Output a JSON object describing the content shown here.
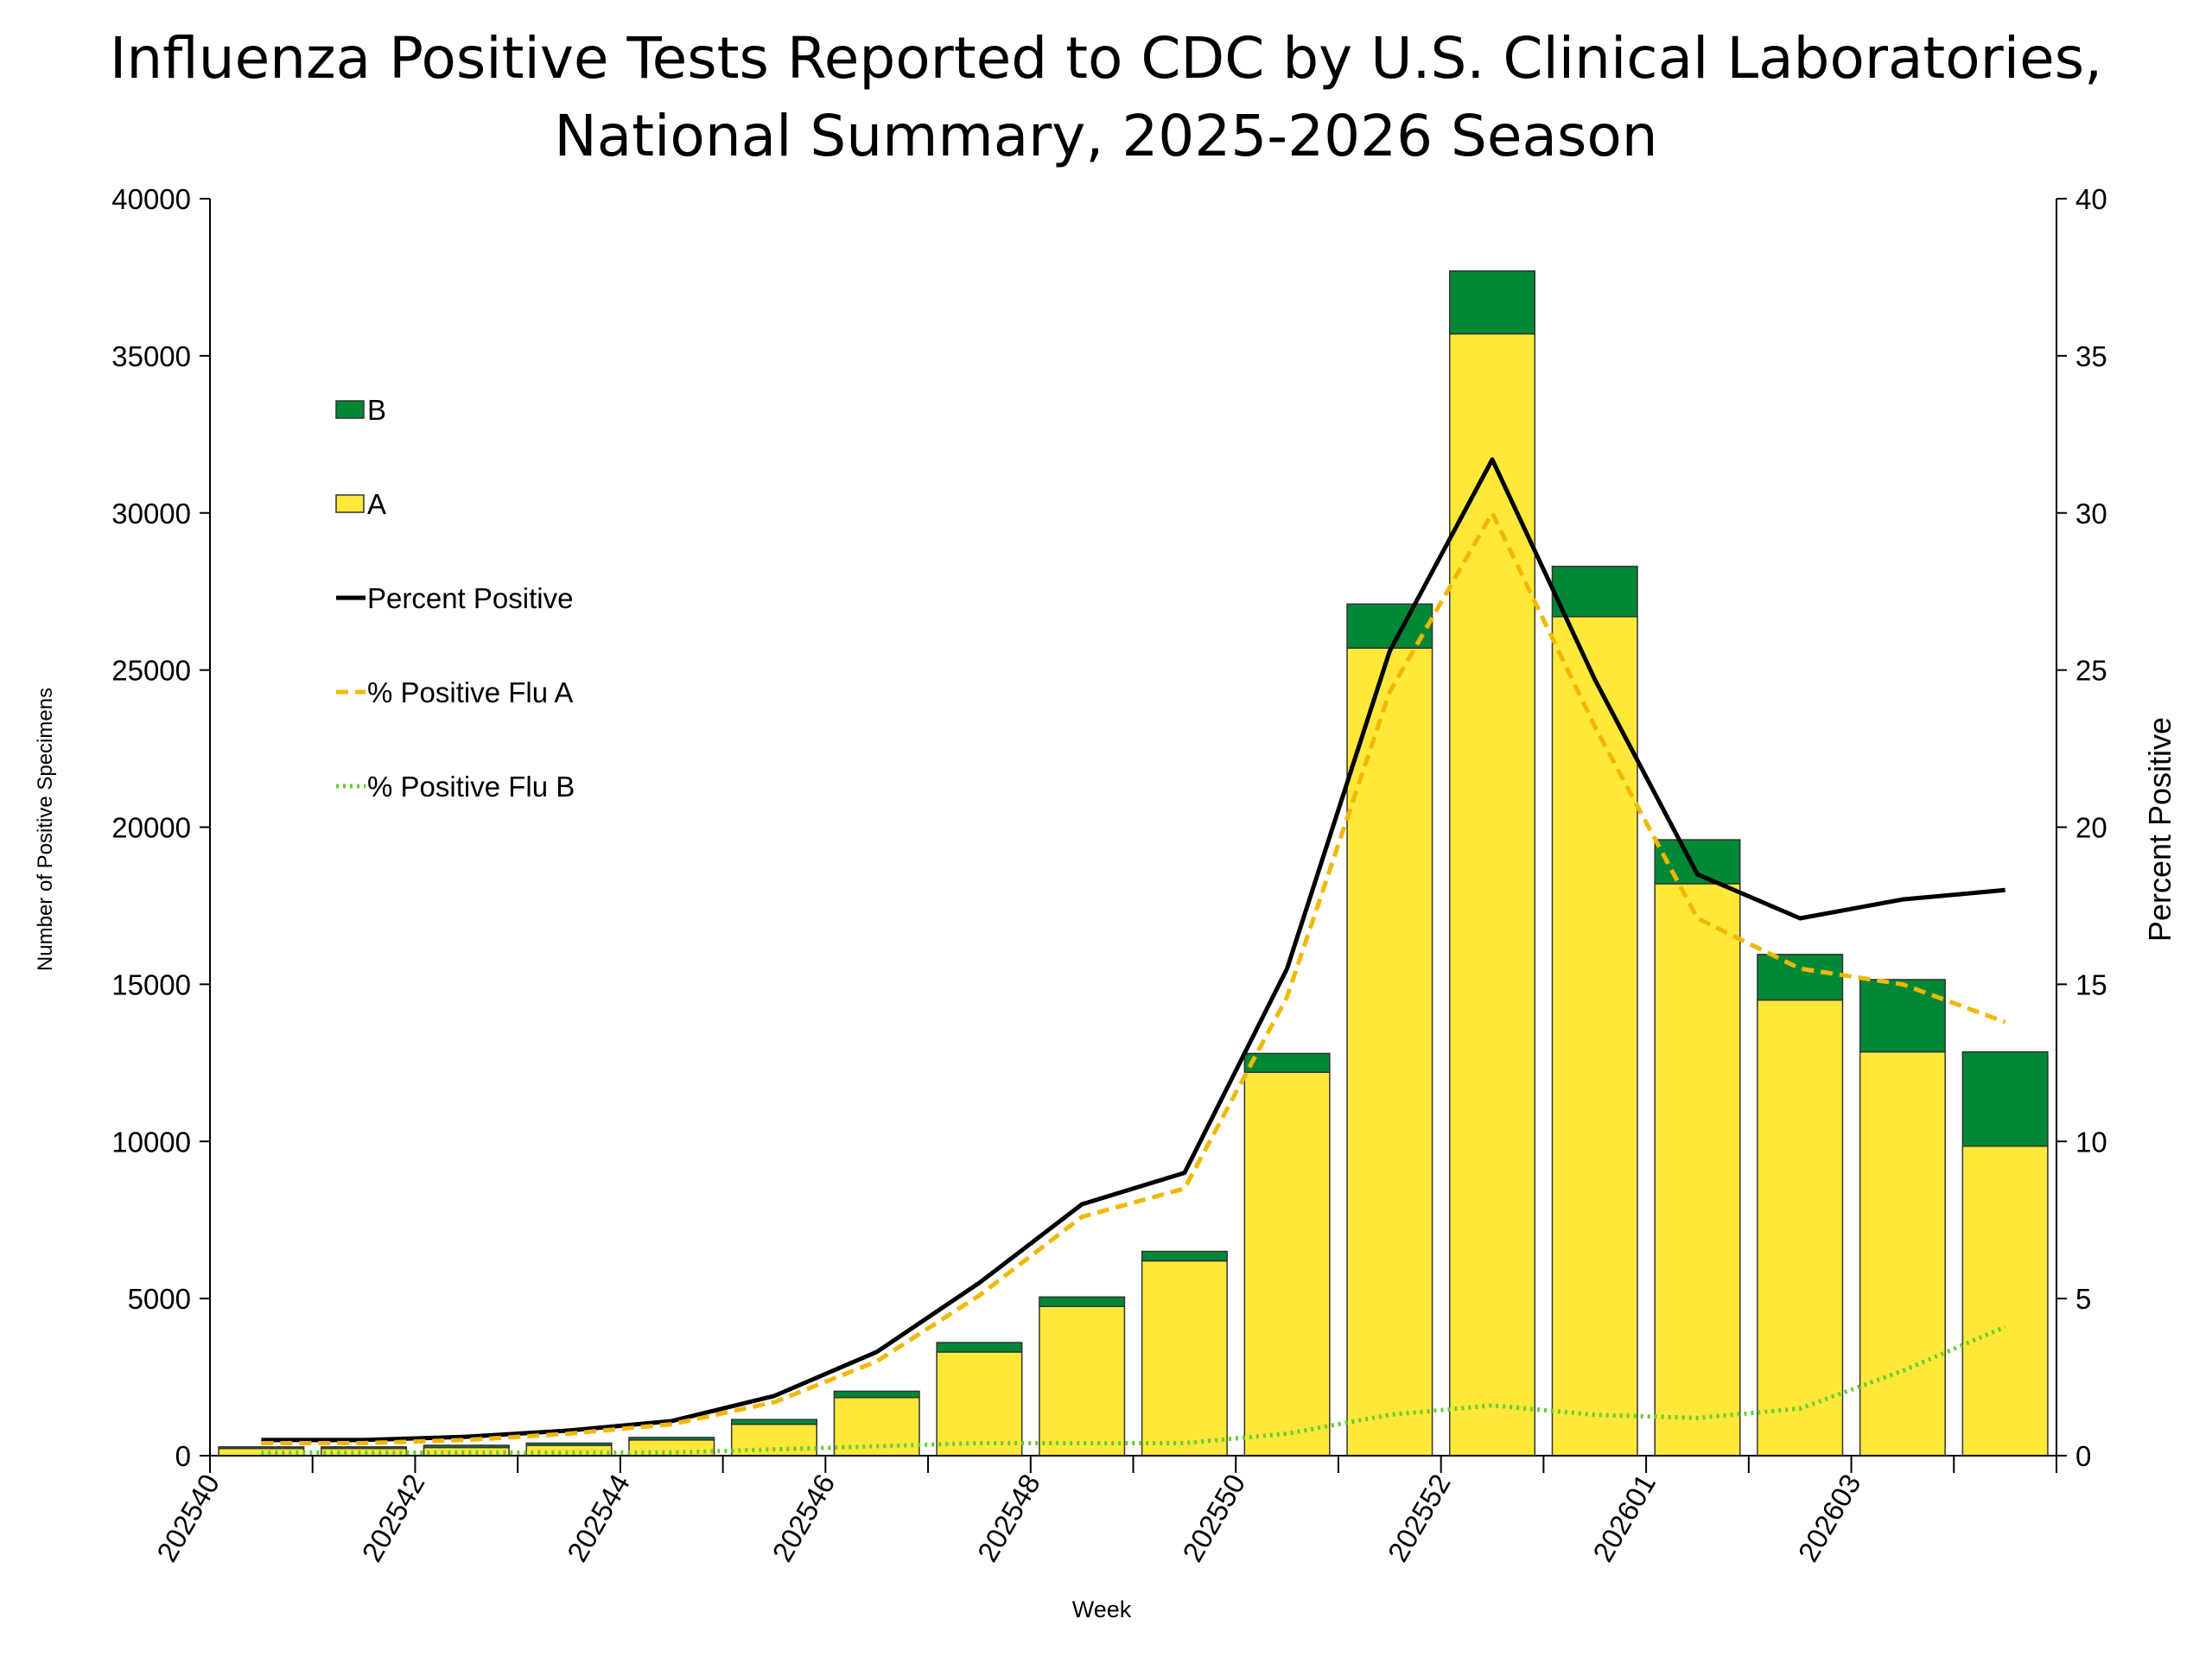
{
  "chart_data": {
    "type": "bar",
    "title": "Influenza Positive Tests Reported to CDC by U.S. Clinical Laboratories,",
    "subtitle": "National Summary, 2025-2026 Season",
    "xlabel": "Week",
    "ylabel": "Number of Positive Specimens",
    "y2label": "Percent Positive",
    "ylim": [
      0,
      40000
    ],
    "y2lim": [
      0,
      40
    ],
    "yticks": [
      0,
      5000,
      10000,
      15000,
      20000,
      25000,
      30000,
      35000,
      40000
    ],
    "y2ticks": [
      0,
      5,
      10,
      15,
      20,
      25,
      30,
      35,
      40
    ],
    "categories": [
      "202540",
      "202541",
      "202542",
      "202543",
      "202544",
      "202545",
      "202546",
      "202547",
      "202548",
      "202549",
      "202550",
      "202551",
      "202552",
      "202553",
      "202601",
      "202602",
      "202603",
      "202604"
    ],
    "xtick_labels": [
      "202540",
      "202542",
      "202544",
      "202546",
      "202548",
      "202550",
      "202552",
      "202601",
      "202603"
    ],
    "legend_placement": "upper-left inside",
    "series": [
      {
        "name": "A",
        "kind": "stacked-bar",
        "axis": "left",
        "color": "#FFE83A",
        "values": [
          230,
          230,
          260,
          330,
          500,
          1000,
          1850,
          3300,
          4750,
          6200,
          12200,
          25700,
          35700,
          26700,
          18200,
          14500,
          12850,
          9850
        ]
      },
      {
        "name": "B",
        "kind": "stacked-bar",
        "axis": "left",
        "color": "#008837",
        "values": [
          50,
          50,
          70,
          70,
          80,
          150,
          200,
          300,
          300,
          300,
          600,
          1400,
          2000,
          1600,
          1400,
          1450,
          2300,
          3000
        ]
      },
      {
        "name": "Percent Positive",
        "kind": "line",
        "axis": "right",
        "color": "#000000",
        "dash": "solid",
        "values": [
          0.5,
          0.5,
          0.6,
          0.8,
          1.1,
          1.9,
          3.3,
          5.5,
          8.0,
          9.0,
          15.5,
          25.6,
          31.7,
          24.7,
          18.5,
          17.1,
          17.7,
          18.0
        ]
      },
      {
        "name": "% Positive Flu A",
        "kind": "line",
        "axis": "right",
        "color": "#F2B800",
        "dash": "dashed",
        "values": [
          0.4,
          0.4,
          0.5,
          0.7,
          1.0,
          1.7,
          3.0,
          5.1,
          7.6,
          8.5,
          14.6,
          24.3,
          30.0,
          23.2,
          17.1,
          15.5,
          15.0,
          13.8
        ]
      },
      {
        "name": "% Positive Flu B",
        "kind": "line",
        "axis": "right",
        "color": "#66CC33",
        "dash": "dotted",
        "values": [
          0.1,
          0.1,
          0.1,
          0.1,
          0.1,
          0.2,
          0.3,
          0.4,
          0.4,
          0.4,
          0.7,
          1.3,
          1.6,
          1.3,
          1.2,
          1.5,
          2.7,
          4.1
        ]
      }
    ],
    "legend": [
      "B",
      "A",
      "Percent Positive",
      "% Positive Flu A",
      "% Positive Flu B"
    ],
    "grid": false
  }
}
